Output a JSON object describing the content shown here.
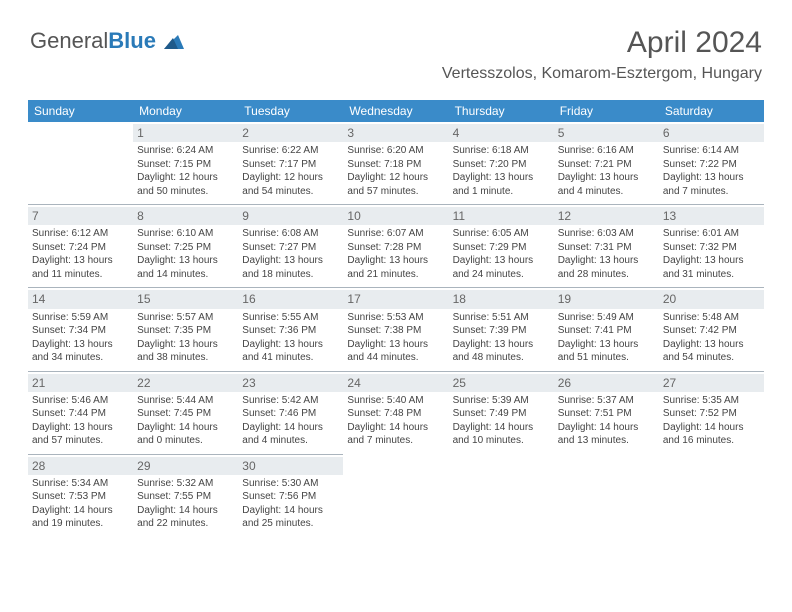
{
  "logo": {
    "text1": "General",
    "text2": "Blue"
  },
  "title": "April 2024",
  "subtitle": "Vertesszolos, Komarom-Esztergom, Hungary",
  "colors": {
    "header_bg": "#3a8bc9",
    "header_text": "#ffffff",
    "daynum_bg": "#e8ecef",
    "border": "#aab4bd",
    "body_text": "#444444",
    "title_text": "#555555"
  },
  "day_headers": [
    "Sunday",
    "Monday",
    "Tuesday",
    "Wednesday",
    "Thursday",
    "Friday",
    "Saturday"
  ],
  "weeks": [
    [
      null,
      {
        "n": "1",
        "sr": "6:24 AM",
        "ss": "7:15 PM",
        "dl": "12 hours and 50 minutes."
      },
      {
        "n": "2",
        "sr": "6:22 AM",
        "ss": "7:17 PM",
        "dl": "12 hours and 54 minutes."
      },
      {
        "n": "3",
        "sr": "6:20 AM",
        "ss": "7:18 PM",
        "dl": "12 hours and 57 minutes."
      },
      {
        "n": "4",
        "sr": "6:18 AM",
        "ss": "7:20 PM",
        "dl": "13 hours and 1 minute."
      },
      {
        "n": "5",
        "sr": "6:16 AM",
        "ss": "7:21 PM",
        "dl": "13 hours and 4 minutes."
      },
      {
        "n": "6",
        "sr": "6:14 AM",
        "ss": "7:22 PM",
        "dl": "13 hours and 7 minutes."
      }
    ],
    [
      {
        "n": "7",
        "sr": "6:12 AM",
        "ss": "7:24 PM",
        "dl": "13 hours and 11 minutes."
      },
      {
        "n": "8",
        "sr": "6:10 AM",
        "ss": "7:25 PM",
        "dl": "13 hours and 14 minutes."
      },
      {
        "n": "9",
        "sr": "6:08 AM",
        "ss": "7:27 PM",
        "dl": "13 hours and 18 minutes."
      },
      {
        "n": "10",
        "sr": "6:07 AM",
        "ss": "7:28 PM",
        "dl": "13 hours and 21 minutes."
      },
      {
        "n": "11",
        "sr": "6:05 AM",
        "ss": "7:29 PM",
        "dl": "13 hours and 24 minutes."
      },
      {
        "n": "12",
        "sr": "6:03 AM",
        "ss": "7:31 PM",
        "dl": "13 hours and 28 minutes."
      },
      {
        "n": "13",
        "sr": "6:01 AM",
        "ss": "7:32 PM",
        "dl": "13 hours and 31 minutes."
      }
    ],
    [
      {
        "n": "14",
        "sr": "5:59 AM",
        "ss": "7:34 PM",
        "dl": "13 hours and 34 minutes."
      },
      {
        "n": "15",
        "sr": "5:57 AM",
        "ss": "7:35 PM",
        "dl": "13 hours and 38 minutes."
      },
      {
        "n": "16",
        "sr": "5:55 AM",
        "ss": "7:36 PM",
        "dl": "13 hours and 41 minutes."
      },
      {
        "n": "17",
        "sr": "5:53 AM",
        "ss": "7:38 PM",
        "dl": "13 hours and 44 minutes."
      },
      {
        "n": "18",
        "sr": "5:51 AM",
        "ss": "7:39 PM",
        "dl": "13 hours and 48 minutes."
      },
      {
        "n": "19",
        "sr": "5:49 AM",
        "ss": "7:41 PM",
        "dl": "13 hours and 51 minutes."
      },
      {
        "n": "20",
        "sr": "5:48 AM",
        "ss": "7:42 PM",
        "dl": "13 hours and 54 minutes."
      }
    ],
    [
      {
        "n": "21",
        "sr": "5:46 AM",
        "ss": "7:44 PM",
        "dl": "13 hours and 57 minutes."
      },
      {
        "n": "22",
        "sr": "5:44 AM",
        "ss": "7:45 PM",
        "dl": "14 hours and 0 minutes."
      },
      {
        "n": "23",
        "sr": "5:42 AM",
        "ss": "7:46 PM",
        "dl": "14 hours and 4 minutes."
      },
      {
        "n": "24",
        "sr": "5:40 AM",
        "ss": "7:48 PM",
        "dl": "14 hours and 7 minutes."
      },
      {
        "n": "25",
        "sr": "5:39 AM",
        "ss": "7:49 PM",
        "dl": "14 hours and 10 minutes."
      },
      {
        "n": "26",
        "sr": "5:37 AM",
        "ss": "7:51 PM",
        "dl": "14 hours and 13 minutes."
      },
      {
        "n": "27",
        "sr": "5:35 AM",
        "ss": "7:52 PM",
        "dl": "14 hours and 16 minutes."
      }
    ],
    [
      {
        "n": "28",
        "sr": "5:34 AM",
        "ss": "7:53 PM",
        "dl": "14 hours and 19 minutes."
      },
      {
        "n": "29",
        "sr": "5:32 AM",
        "ss": "7:55 PM",
        "dl": "14 hours and 22 minutes."
      },
      {
        "n": "30",
        "sr": "5:30 AM",
        "ss": "7:56 PM",
        "dl": "14 hours and 25 minutes."
      },
      null,
      null,
      null,
      null
    ]
  ],
  "labels": {
    "sunrise": "Sunrise: ",
    "sunset": "Sunset: ",
    "daylight": "Daylight: "
  }
}
